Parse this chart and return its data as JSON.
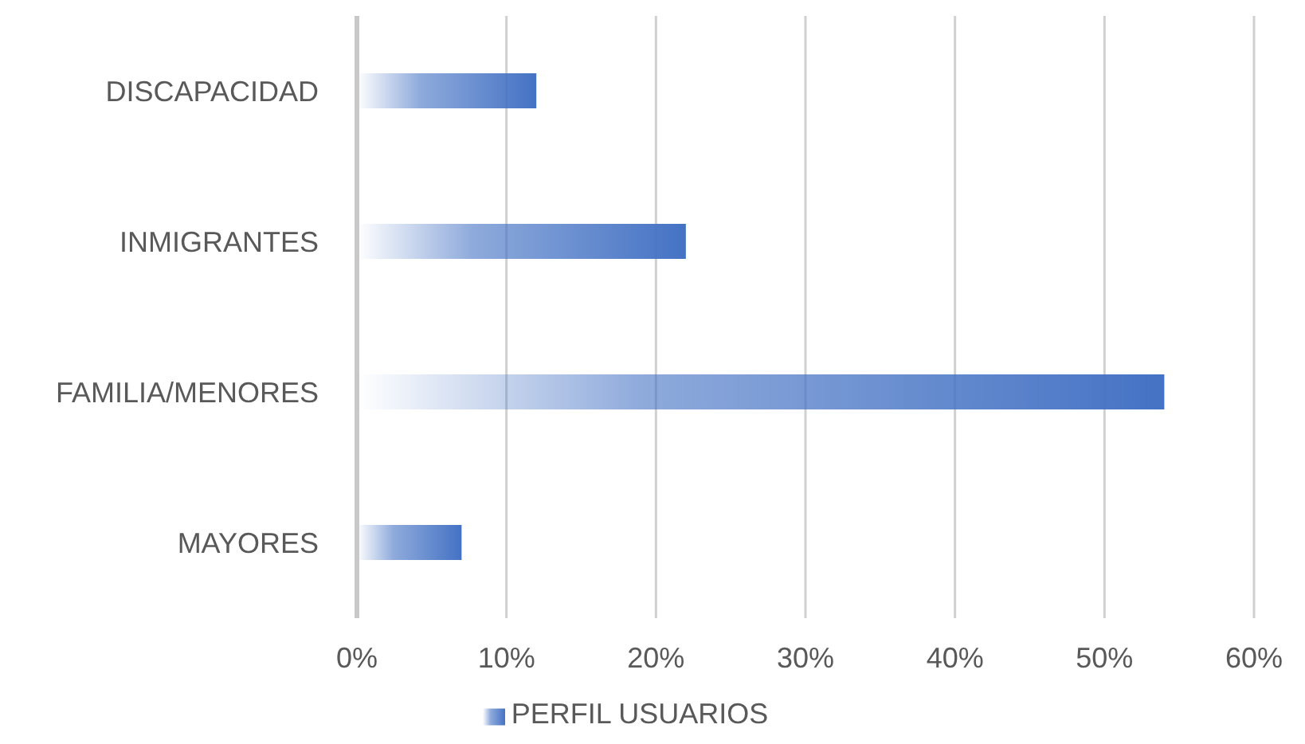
{
  "chart_data": {
    "type": "bar",
    "orientation": "horizontal",
    "categories": [
      "DISCAPACIDAD",
      "INMIGRANTES",
      "FAMILIA/MENORES",
      "MAYORES"
    ],
    "series": [
      {
        "name": "PERFIL USUARIOS",
        "color": "#4472c4",
        "values": [
          12,
          22,
          54,
          7
        ]
      }
    ],
    "xlim": [
      0,
      60
    ],
    "xticks": [
      {
        "value": 0,
        "label": "0%"
      },
      {
        "value": 10,
        "label": "10%"
      },
      {
        "value": 20,
        "label": "20%"
      },
      {
        "value": 30,
        "label": "30%"
      },
      {
        "value": 40,
        "label": "40%"
      },
      {
        "value": 50,
        "label": "50%"
      },
      {
        "value": 60,
        "label": "60%"
      }
    ],
    "grid": "x",
    "legend": "bottom"
  }
}
